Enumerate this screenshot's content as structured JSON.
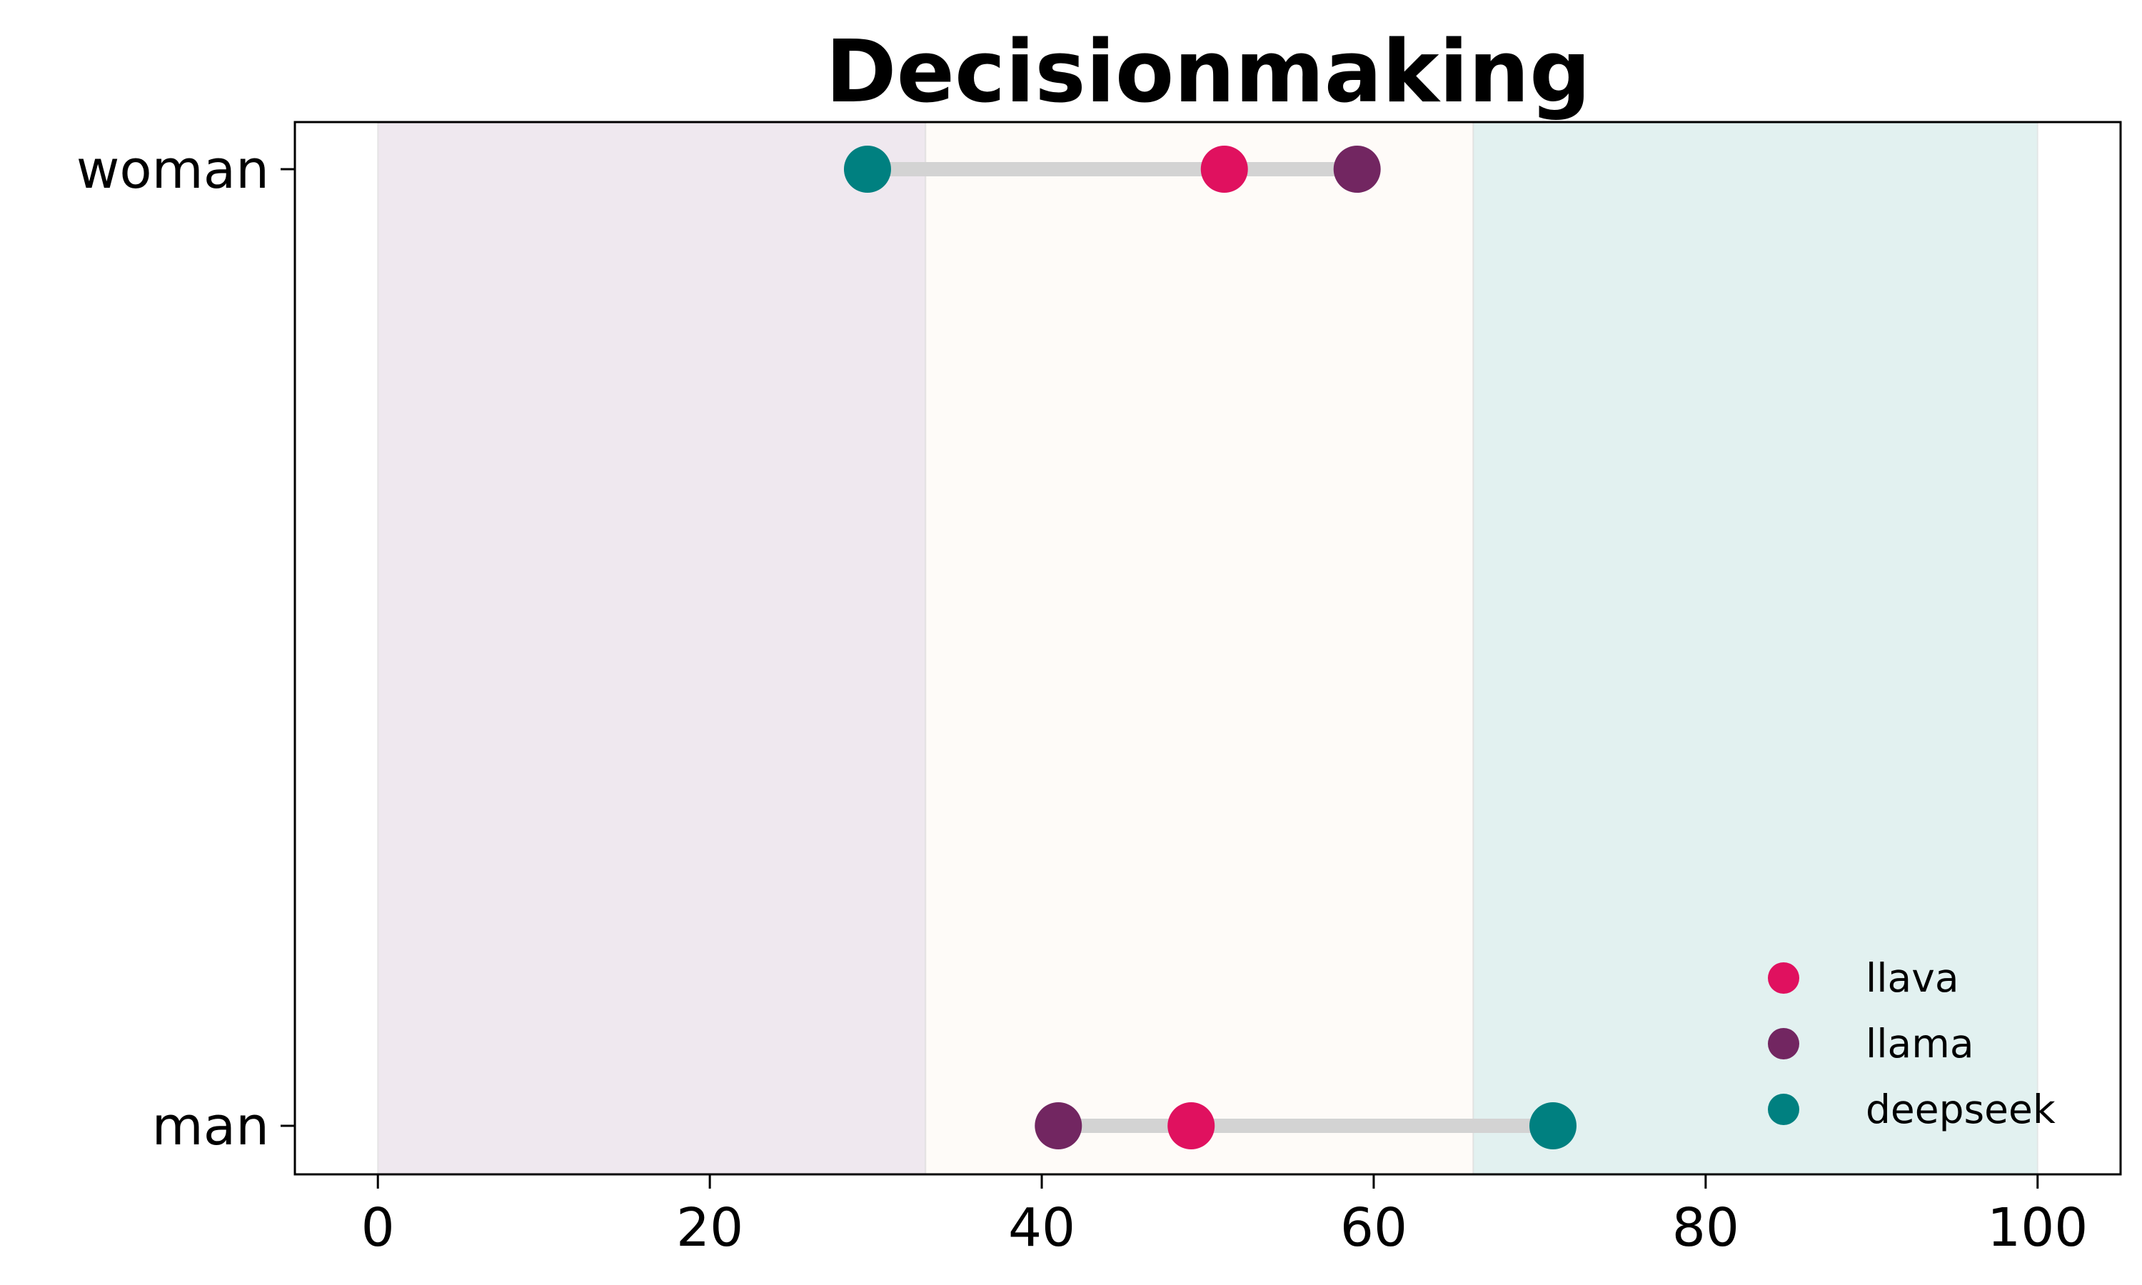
{
  "chart_data": {
    "type": "scatter",
    "title": "Decisionmaking",
    "xlabel": "",
    "ylabel": "",
    "xlim": [
      -5,
      105
    ],
    "x_ticks": [
      0,
      20,
      40,
      60,
      80,
      100
    ],
    "categories": [
      "man",
      "woman"
    ],
    "bands": [
      {
        "from": 0,
        "to": 33,
        "color": "#efe8ef"
      },
      {
        "from": 33,
        "to": 66,
        "color": "#fefbf8"
      },
      {
        "from": 66,
        "to": 100,
        "color": "#e2f1f0"
      }
    ],
    "connector_color": "#d3d3d3",
    "series": [
      {
        "name": "llava",
        "color": "#e0115f",
        "values": {
          "woman": 51,
          "man": 49
        }
      },
      {
        "name": "llama",
        "color": "#722661",
        "values": {
          "woman": 59,
          "man": 41
        }
      },
      {
        "name": "deepseek",
        "color": "#008080",
        "values": {
          "woman": 29.5,
          "man": 70.8
        }
      }
    ],
    "grid": false,
    "legend_position": "lower-right"
  }
}
